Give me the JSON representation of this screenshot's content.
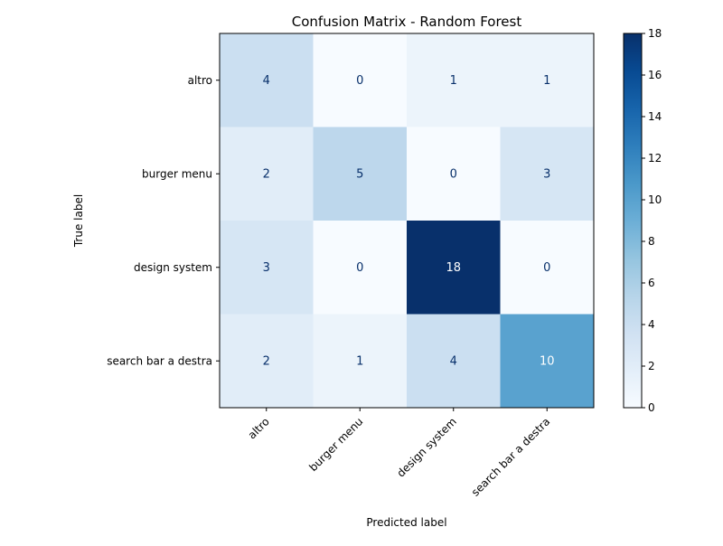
{
  "chart_data": {
    "type": "heatmap",
    "title": "Confusion Matrix - Random Forest",
    "xlabel": "Predicted label",
    "ylabel": "True label",
    "x_categories": [
      "altro",
      "burger menu",
      "design system",
      "search bar a destra"
    ],
    "y_categories": [
      "altro",
      "burger menu",
      "design system",
      "search bar a destra"
    ],
    "values": [
      [
        4,
        0,
        1,
        1
      ],
      [
        2,
        5,
        0,
        3
      ],
      [
        3,
        0,
        18,
        0
      ],
      [
        2,
        1,
        4,
        10
      ]
    ],
    "colormap": "Blues",
    "colors": {
      "low": "#f7fbff",
      "high": "#08306b",
      "text_dark": "#08306b",
      "text_light": "#ffffff"
    },
    "colorbar": {
      "range": [
        0,
        18
      ],
      "ticks": [
        "0",
        "2",
        "4",
        "6",
        "8",
        "10",
        "12",
        "14",
        "16",
        "18"
      ]
    }
  }
}
